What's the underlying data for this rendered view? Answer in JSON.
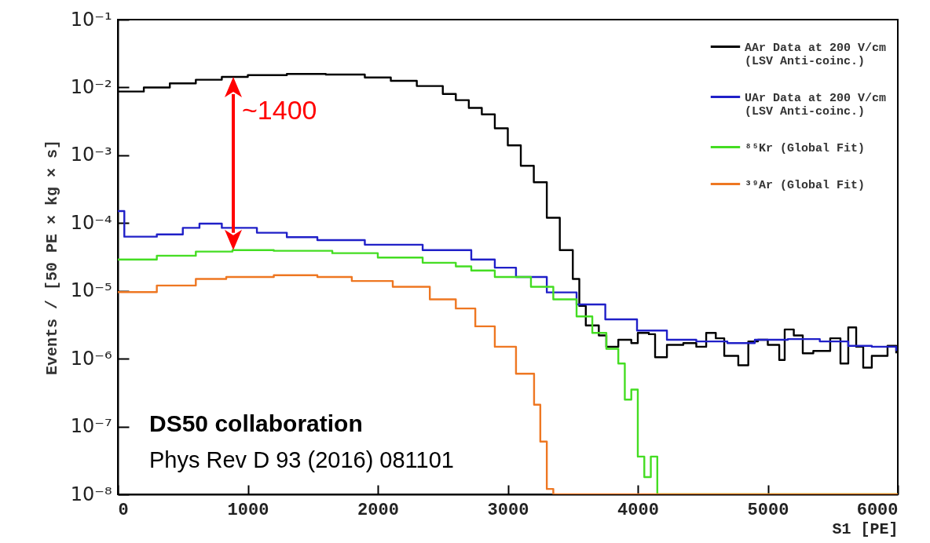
{
  "chart_data": {
    "type": "step",
    "xlabel": "S1 [PE]",
    "ylabel": "Events / [50 PE × kg × s]",
    "log": "y",
    "grid": false,
    "legend": "top right",
    "line_style": "solid",
    "xlim": [
      0,
      6000
    ],
    "xticks": [
      0,
      1000,
      2000,
      3000,
      4000,
      5000,
      6000
    ],
    "ylim": [
      1e-08,
      0.1
    ],
    "yticks": [
      {
        "value": 1e-08,
        "label": "10⁻⁸"
      },
      {
        "value": 1e-07,
        "label": "10⁻⁷"
      },
      {
        "value": 1e-06,
        "label": "10⁻⁶"
      },
      {
        "value": 1e-05,
        "label": "10⁻⁵"
      },
      {
        "value": 0.0001,
        "label": "10⁻⁴"
      },
      {
        "value": 0.001,
        "label": "10⁻³"
      },
      {
        "value": 0.01,
        "label": "10⁻²"
      },
      {
        "value": 0.1,
        "label": "10⁻¹"
      }
    ],
    "series": [
      {
        "name": "AAr Data at 200 V/cm\n(LSV Anti-coinc.)",
        "color": "#000000",
        "x": [
          0,
          200,
          400,
          600,
          800,
          1000,
          1300,
          1600,
          1900,
          2100,
          2300,
          2500,
          2600,
          2700,
          2800,
          2900,
          3000,
          3100,
          3200,
          3300,
          3400,
          3500,
          3550,
          3600,
          3700,
          3758,
          3850,
          3950,
          4000,
          4085,
          4133,
          4224,
          4350,
          4450,
          4526,
          4600,
          4665,
          4773,
          4850,
          4924,
          5000,
          5088,
          5130,
          5200,
          5269,
          5350,
          5480,
          5559,
          5619,
          5680,
          5734,
          5800,
          5921,
          5988
        ],
        "values": [
          0.0087,
          0.01,
          0.0115,
          0.013,
          0.0143,
          0.0152,
          0.0158,
          0.0155,
          0.014,
          0.0125,
          0.0105,
          0.008,
          0.0065,
          0.005,
          0.004,
          0.0025,
          0.0014,
          0.0007,
          0.0004,
          0.00012,
          4e-05,
          1.5e-05,
          6e-06,
          3.1e-06,
          2.2e-06,
          1.5e-06,
          1.9e-06,
          1.7e-06,
          2.4e-06,
          2.3e-06,
          1.05e-06,
          1.6e-06,
          1.7e-06,
          1.5e-06,
          2.4e-06,
          2e-06,
          1.1e-06,
          8e-07,
          1.8e-06,
          1.9e-06,
          1.6e-06,
          9.6e-07,
          2.7e-06,
          2.2e-06,
          1.2e-06,
          1.3e-06,
          2e-06,
          8.5e-07,
          2.9e-06,
          1.5e-06,
          7.4e-07,
          1.1e-06,
          1.55e-06,
          1.2e-06
        ]
      },
      {
        "name": "UAr Data at 200 V/cm\n(LSV Anti-coinc.)",
        "color": "#2020c8",
        "x": [
          0,
          50,
          300,
          500,
          628,
          800,
          1070,
          1300,
          1535,
          1900,
          2345,
          2719,
          2900,
          3063,
          3300,
          3529,
          3750,
          3994,
          4224,
          4450,
          4689,
          4900,
          5154,
          5400,
          5619,
          5800,
          5988
        ],
        "values": [
          0.00015,
          6.3e-05,
          6.8e-05,
          8.5e-05,
          9.8e-05,
          8.5e-05,
          7.2e-05,
          6.2e-05,
          5.6e-05,
          4.8e-05,
          4e-05,
          2.9e-05,
          2.2e-05,
          1.6e-05,
          9.5e-06,
          6.3e-06,
          3.8e-06,
          2.6e-06,
          1.9e-06,
          1.8e-06,
          1.7e-06,
          1.9e-06,
          1.95e-06,
          1.8e-06,
          1.55e-06,
          1.5e-06,
          1.3e-06
        ]
      },
      {
        "name": "⁸⁵Kr (Global Fit)",
        "color": "#44dd22",
        "x": [
          0,
          300,
          600,
          882,
          1200,
          1650,
          2000,
          2345,
          2600,
          2719,
          2900,
          3178,
          3350,
          3529,
          3650,
          3758,
          3850,
          3900,
          3950,
          4000,
          4050,
          4100,
          4150,
          6000
        ],
        "values": [
          2.9e-05,
          3.3e-05,
          3.8e-05,
          4e-05,
          3.9e-05,
          3.6e-05,
          3.1e-05,
          2.6e-05,
          2.3e-05,
          2e-05,
          1.6e-05,
          1.15e-05,
          7.5e-06,
          4.2e-06,
          2.4e-06,
          1.4e-06,
          8.5e-07,
          2.5e-07,
          3.5e-07,
          3.6e-08,
          1.8e-08,
          3.6e-08,
          1e-08,
          1e-08
        ]
      },
      {
        "name": "³⁹Ar (Global Fit)",
        "color": "#ee7722",
        "x": [
          0,
          300,
          600,
          834,
          1200,
          1535,
          1800,
          2115,
          2400,
          2600,
          2750,
          2900,
          3063,
          3202,
          3250,
          3300,
          3350,
          6000
        ],
        "values": [
          9.6e-06,
          1.2e-05,
          1.5e-05,
          1.6e-05,
          1.7e-05,
          1.6e-05,
          1.4e-05,
          1.15e-05,
          7.5e-06,
          5.5e-06,
          3e-06,
          1.5e-06,
          6e-07,
          2.1e-07,
          6e-08,
          1.2e-08,
          1e-08,
          1e-08
        ]
      }
    ],
    "annotations": [
      "~1400",
      "DS50 collaboration",
      "Phys Rev D 93 (2016) 081101"
    ]
  }
}
